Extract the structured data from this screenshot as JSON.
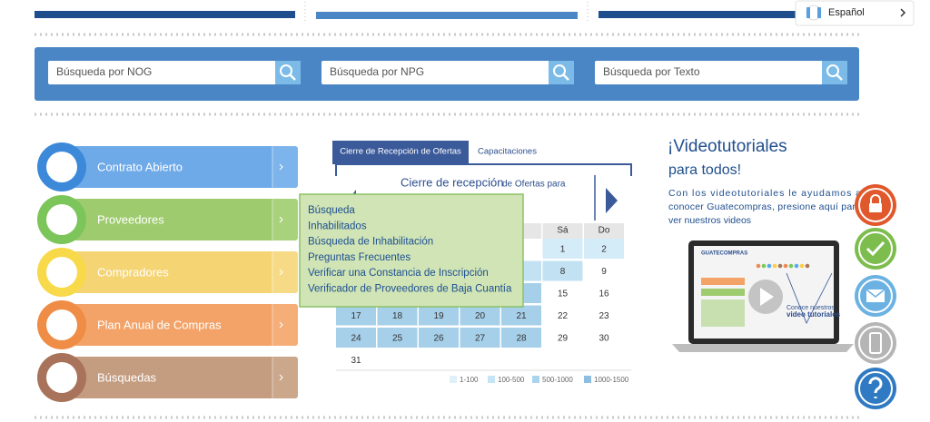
{
  "language": "Español",
  "search": [
    "Búsqueda por NOG",
    "Búsqueda por NPG",
    "Búsqueda por Texto"
  ],
  "menu": [
    "Contrato Abierto",
    "Proveedores",
    "Compradores",
    "Plan Anual de Compras",
    "Búsquedas"
  ],
  "submenu": [
    "Búsqueda",
    "Inhabilitados",
    "Búsqueda de Inhabilitación",
    "Preguntas Frecuentes",
    "Verificar una Constancia de Inscripción",
    "Verificador de Proveedores de Baja Cuantía"
  ],
  "tabs": [
    "Cierre de Recepción de Ofertas",
    "Capacitaciones"
  ],
  "calendar": {
    "title": "Cierre de recepción",
    "title_rest": "de Ofertas para",
    "weekdays": [
      "Sá",
      "Do"
    ],
    "days": [
      "1",
      "2",
      "8",
      "9",
      "15",
      "16",
      "17",
      "18",
      "19",
      "20",
      "21",
      "22",
      "23",
      "24",
      "25",
      "26",
      "27",
      "28",
      "29",
      "30",
      "31"
    ],
    "legend": [
      "1-100",
      "100-500",
      "500-1000",
      "1000-1500"
    ]
  },
  "videos": {
    "title": "¡Videotutoriales",
    "subtitle": "para todos!",
    "text_lines": [
      "Con los videotutoriales le ayudamos a",
      "conocer Guatecompras, presione aquí para",
      "ver nuestros videos"
    ],
    "logo": "GUATECOMPRAS",
    "promo": [
      "Conoce nuestros",
      "video tutoriales"
    ]
  }
}
